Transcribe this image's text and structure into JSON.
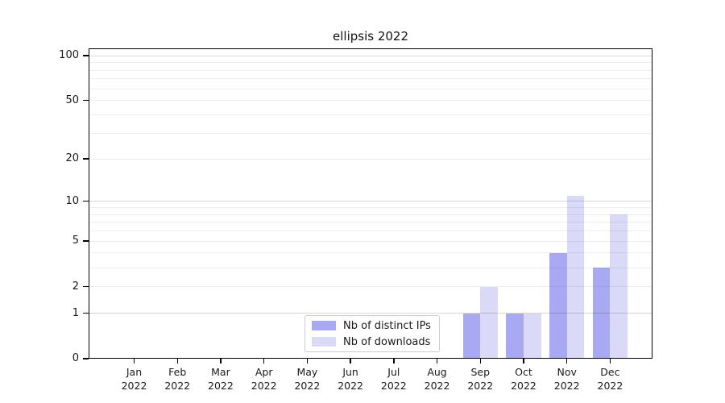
{
  "title": "ellipsis 2022",
  "chart_data": {
    "type": "bar",
    "title": "ellipsis 2022",
    "categories": [
      "Jan 2022",
      "Feb 2022",
      "Mar 2022",
      "Apr 2022",
      "May 2022",
      "Jun 2022",
      "Jul 2022",
      "Aug 2022",
      "Sep 2022",
      "Oct 2022",
      "Nov 2022",
      "Dec 2022"
    ],
    "months": [
      "Jan",
      "Feb",
      "Mar",
      "Apr",
      "May",
      "Jun",
      "Jul",
      "Aug",
      "Sep",
      "Oct",
      "Nov",
      "Dec"
    ],
    "year_line": "2022",
    "series": [
      {
        "name": "Nb of distinct IPs",
        "color": "#a9a9f3",
        "values": [
          0,
          0,
          0,
          0,
          0,
          0,
          0,
          0,
          1,
          1,
          4,
          3
        ]
      },
      {
        "name": "Nb of downloads",
        "color": "#dadaf8",
        "values": [
          0,
          0,
          0,
          0,
          0,
          0,
          0,
          0,
          2,
          1,
          11,
          8
        ]
      }
    ],
    "y_axis": {
      "scale": "log1p",
      "tick_labels": [
        0,
        1,
        2,
        5,
        10,
        20,
        50,
        100
      ],
      "major_gridlines": [
        1,
        10,
        100
      ],
      "minor_gridlines": [
        2,
        3,
        4,
        5,
        6,
        7,
        8,
        9,
        20,
        30,
        40,
        50,
        60,
        70,
        80,
        90
      ],
      "max": 112
    },
    "legend": {
      "entries": [
        "Nb of distinct IPs",
        "Nb of downloads"
      ],
      "position": "lower center"
    },
    "grid": true,
    "colors": {
      "major_grid": "rgba(0,0,0,0.16)",
      "minor_grid": "rgba(0,0,0,0.065)",
      "spine": "#000000",
      "text": "#1a1a1a",
      "legend_border": "#cccccc"
    }
  }
}
